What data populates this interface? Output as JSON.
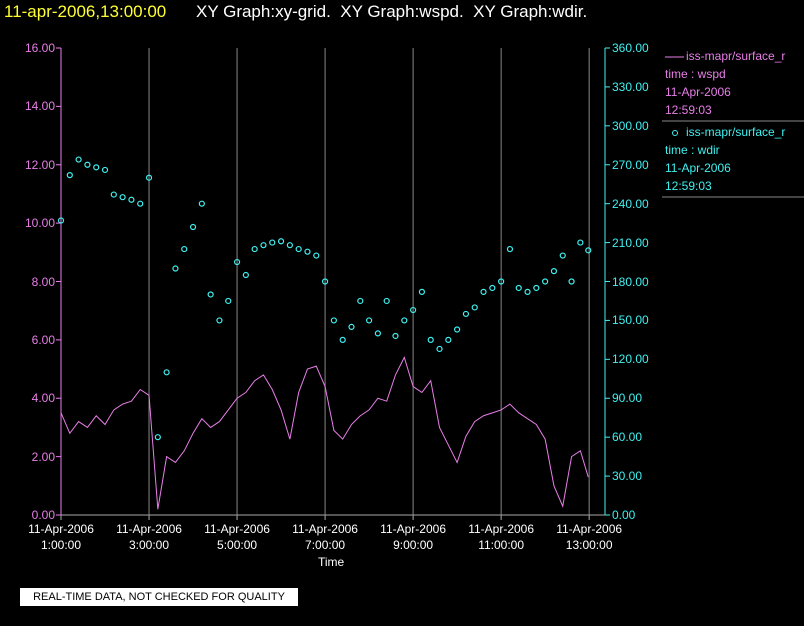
{
  "chart_data": {
    "type": "line-scatter",
    "title_time": "11-apr-2006,13:00:00",
    "title": "XY Graph:xy-grid.  XY Graph:wspd.  XY Graph:wdir.",
    "xlabel": "Time",
    "footer": "REAL-TIME DATA, NOT CHECKED FOR QUALITY",
    "xlim": [
      1,
      13.36
    ],
    "xticks": [
      {
        "value": 1,
        "label": "11-Apr-2006\n1:00:00"
      },
      {
        "value": 3,
        "label": "11-Apr-2006\n3:00:00"
      },
      {
        "value": 5,
        "label": "11-Apr-2006\n5:00:00"
      },
      {
        "value": 7,
        "label": "11-Apr-2006\n7:00:00"
      },
      {
        "value": 9,
        "label": "11-Apr-2006\n9:00:00"
      },
      {
        "value": 11,
        "label": "11-Apr-2006\n11:00:00"
      },
      {
        "value": 13,
        "label": "11-Apr-2006\n13:00:00"
      }
    ],
    "ylim": [
      0,
      16
    ],
    "yticks": [
      {
        "value": 0,
        "label": "0.00"
      },
      {
        "value": 2,
        "label": "2.00"
      },
      {
        "value": 4,
        "label": "4.00"
      },
      {
        "value": 6,
        "label": "6.00"
      },
      {
        "value": 8,
        "label": "8.00"
      },
      {
        "value": 10,
        "label": "10.00"
      },
      {
        "value": 12,
        "label": "12.00"
      },
      {
        "value": 14,
        "label": "14.00"
      },
      {
        "value": 16,
        "label": "16.00"
      }
    ],
    "y2lim": [
      0,
      360
    ],
    "y2ticks": [
      {
        "value": 0,
        "label": "0.00"
      },
      {
        "value": 30,
        "label": "30.00"
      },
      {
        "value": 60,
        "label": "60.00"
      },
      {
        "value": 90,
        "label": "90.00"
      },
      {
        "value": 120,
        "label": "120.00"
      },
      {
        "value": 150,
        "label": "150.00"
      },
      {
        "value": 180,
        "label": "180.00"
      },
      {
        "value": 210,
        "label": "210.00"
      },
      {
        "value": 240,
        "label": "240.00"
      },
      {
        "value": 270,
        "label": "270.00"
      },
      {
        "value": 300,
        "label": "300.00"
      },
      {
        "value": 330,
        "label": "330.00"
      },
      {
        "value": 360,
        "label": "360.00"
      }
    ],
    "grid": true,
    "x": [
      1.0,
      1.2,
      1.4,
      1.6,
      1.8,
      2.0,
      2.2,
      2.4,
      2.6,
      2.8,
      3.0,
      3.2,
      3.4,
      3.6,
      3.8,
      4.0,
      4.2,
      4.4,
      4.6,
      4.8,
      5.0,
      5.2,
      5.4,
      5.6,
      5.8,
      6.0,
      6.2,
      6.4,
      6.6,
      6.8,
      7.0,
      7.2,
      7.4,
      7.6,
      7.8,
      8.0,
      8.2,
      8.4,
      8.6,
      8.8,
      9.0,
      9.2,
      9.4,
      9.6,
      9.8,
      10.0,
      10.2,
      10.4,
      10.6,
      10.8,
      11.0,
      11.2,
      11.4,
      11.6,
      11.8,
      12.0,
      12.2,
      12.4,
      12.6,
      12.8,
      12.98
    ],
    "series": [
      {
        "name": "iss-mapr/surface_r",
        "kind": "line",
        "color": "#e87ee8",
        "details": [
          "time : wspd",
          "11-Apr-2006",
          "12:59:03"
        ],
        "values": [
          3.5,
          2.8,
          3.2,
          3.0,
          3.4,
          3.1,
          3.6,
          3.8,
          3.9,
          4.3,
          4.1,
          0.2,
          2.0,
          1.8,
          2.2,
          2.8,
          3.3,
          3.0,
          3.2,
          3.6,
          4.0,
          4.2,
          4.6,
          4.8,
          4.3,
          3.6,
          2.6,
          4.2,
          5.0,
          5.1,
          4.4,
          2.9,
          2.6,
          3.1,
          3.4,
          3.6,
          4.0,
          3.9,
          4.8,
          5.4,
          4.4,
          4.2,
          4.6,
          3.0,
          2.4,
          1.8,
          2.7,
          3.2,
          3.4,
          3.5,
          3.6,
          3.8,
          3.5,
          3.3,
          3.1,
          2.6,
          1.0,
          0.3,
          2.0,
          2.2,
          1.3
        ]
      },
      {
        "name": "iss-mapr/surface_r",
        "kind": "scatter",
        "axis": "y2",
        "color": "#3ff0f0",
        "details": [
          "time : wdir",
          "11-Apr-2006",
          "12:59:03"
        ],
        "values": [
          227,
          262,
          274,
          270,
          268,
          266,
          247,
          245,
          243,
          240,
          260,
          60,
          110,
          190,
          205,
          222,
          240,
          170,
          150,
          165,
          195,
          185,
          205,
          208,
          210,
          211,
          208,
          205,
          203,
          200,
          180,
          150,
          135,
          145,
          165,
          150,
          140,
          165,
          138,
          150,
          158,
          172,
          135,
          128,
          135,
          143,
          155,
          160,
          172,
          175,
          180,
          205,
          175,
          172,
          175,
          180,
          188,
          200,
          180,
          210,
          204
        ]
      }
    ]
  }
}
